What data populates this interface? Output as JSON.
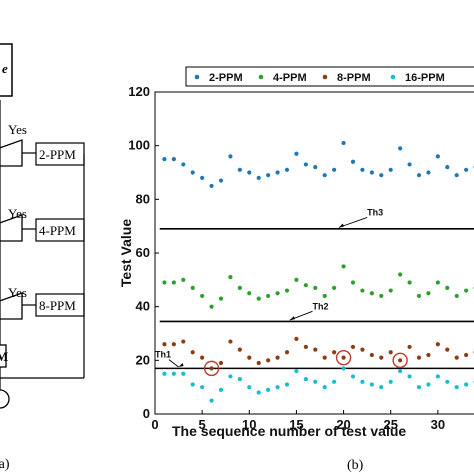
{
  "flowchart": {
    "box_top_text": "e",
    "yes_labels": [
      "Yes",
      "Yes",
      "Yes"
    ],
    "outputs": [
      "2-PPM",
      "4-PPM",
      "8-PPM"
    ],
    "box_bottom_text": "M",
    "panel_label": "(a)"
  },
  "panel_b_label": "(b)",
  "chart_data": {
    "type": "scatter",
    "xlabel": "The sequence number of test value",
    "ylabel": "Test Value",
    "xlim": [
      0,
      35
    ],
    "ylim": [
      0,
      120
    ],
    "xticks": [
      0,
      5,
      10,
      15,
      20,
      25,
      30
    ],
    "yticks": [
      0,
      20,
      40,
      60,
      80,
      100,
      120
    ],
    "legend_position": "top",
    "series": [
      {
        "name": "2-PPM",
        "color": "#1f77b4",
        "x": [
          1,
          2,
          3,
          4,
          5,
          6,
          7,
          8,
          9,
          10,
          11,
          12,
          13,
          14,
          15,
          16,
          17,
          18,
          19,
          20,
          21,
          22,
          23,
          24,
          25,
          26,
          27,
          28,
          29,
          30,
          31,
          32,
          33,
          34
        ],
        "y": [
          95,
          95,
          93,
          90,
          88,
          85,
          87,
          96,
          91,
          90,
          88,
          89,
          90,
          91,
          97,
          93,
          92,
          89,
          91,
          101,
          94,
          91,
          90,
          89,
          91,
          99,
          93,
          89,
          90,
          96,
          92,
          89,
          91,
          92
        ]
      },
      {
        "name": "4-PPM",
        "color": "#2ca02c",
        "x": [
          1,
          2,
          3,
          4,
          5,
          6,
          7,
          8,
          9,
          10,
          11,
          12,
          13,
          14,
          15,
          16,
          17,
          18,
          19,
          20,
          21,
          22,
          23,
          24,
          25,
          26,
          27,
          28,
          29,
          30,
          31,
          32,
          33,
          34
        ],
        "y": [
          49,
          49,
          50,
          47,
          44,
          40,
          43,
          51,
          47,
          45,
          43,
          44,
          45,
          46,
          50,
          48,
          47,
          44,
          47,
          55,
          49,
          46,
          45,
          44,
          46,
          52,
          49,
          44,
          45,
          49,
          47,
          44,
          46,
          47
        ]
      },
      {
        "name": "8-PPM",
        "color": "#8c3d11",
        "x": [
          1,
          2,
          3,
          4,
          5,
          6,
          7,
          8,
          9,
          10,
          11,
          12,
          13,
          14,
          15,
          16,
          17,
          18,
          19,
          20,
          21,
          22,
          23,
          24,
          25,
          26,
          27,
          28,
          29,
          30,
          31,
          32,
          33,
          34
        ],
        "y": [
          26,
          26,
          27,
          23,
          21,
          17,
          19,
          27,
          24,
          21,
          19,
          20,
          21,
          23,
          28,
          25,
          24,
          21,
          23,
          21,
          25,
          24,
          22,
          21,
          23,
          20,
          25,
          21,
          22,
          26,
          24,
          21,
          22,
          23
        ]
      },
      {
        "name": "16-PPM",
        "color": "#17becf",
        "x": [
          1,
          2,
          3,
          4,
          5,
          6,
          7,
          8,
          9,
          10,
          11,
          12,
          13,
          14,
          15,
          16,
          17,
          18,
          19,
          20,
          21,
          22,
          23,
          24,
          25,
          26,
          27,
          28,
          29,
          30,
          31,
          32,
          33,
          34
        ],
        "y": [
          15,
          15,
          15,
          11,
          10,
          5,
          9,
          14,
          13,
          10,
          8,
          9,
          10,
          11,
          16,
          13,
          12,
          10,
          12,
          17,
          14,
          12,
          11,
          10,
          12,
          16,
          14,
          10,
          11,
          14,
          12,
          10,
          11,
          12
        ]
      }
    ],
    "thresholds": [
      {
        "label": "Th3",
        "y": 69,
        "label_x": 22.5,
        "label_y": 74,
        "arrow_x": 19.5,
        "arrow_y": 69.5
      },
      {
        "label": "Th2",
        "y": 34.5,
        "label_x": 16.7,
        "label_y": 39,
        "arrow_x": 14.3,
        "arrow_y": 35
      },
      {
        "label": "Th1",
        "y": 17,
        "label_x": 0,
        "label_y": 21,
        "arrow_x": 2.5,
        "arrow_y": 17.5
      }
    ],
    "circled_points": [
      {
        "x": 6,
        "y": 17
      },
      {
        "x": 20,
        "y": 21
      },
      {
        "x": 26,
        "y": 20
      }
    ]
  }
}
